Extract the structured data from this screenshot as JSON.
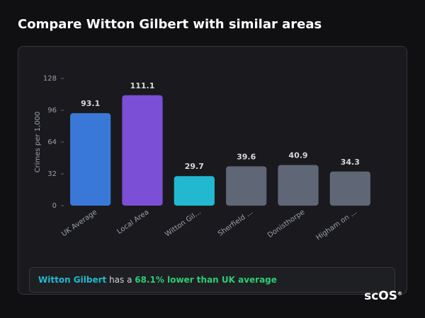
{
  "header": {
    "title": "Compare Witton Gilbert with similar areas"
  },
  "chart_data": {
    "type": "bar",
    "y_label": "Crimes per 1,000",
    "categories": [
      "UK Average",
      "Local Area",
      "Witton Gil...",
      "Sherfield ...",
      "Donisthorpe",
      "Higham on ..."
    ],
    "values": [
      93.1,
      111.1,
      29.7,
      39.6,
      40.9,
      34.3
    ],
    "colors": [
      "#3a78d8",
      "#7b4fd6",
      "#22b8cf",
      "#5f6675",
      "#5f6675",
      "#5f6675"
    ],
    "ylim": [
      0,
      128
    ],
    "yticks": [
      0,
      32,
      64,
      96,
      128
    ],
    "grid": false
  },
  "summary": {
    "area": "Witton Gilbert",
    "connector": "has a",
    "comparison": "68.1% lower than UK average"
  },
  "brand": {
    "logo": "scOS",
    "mark": "®"
  }
}
